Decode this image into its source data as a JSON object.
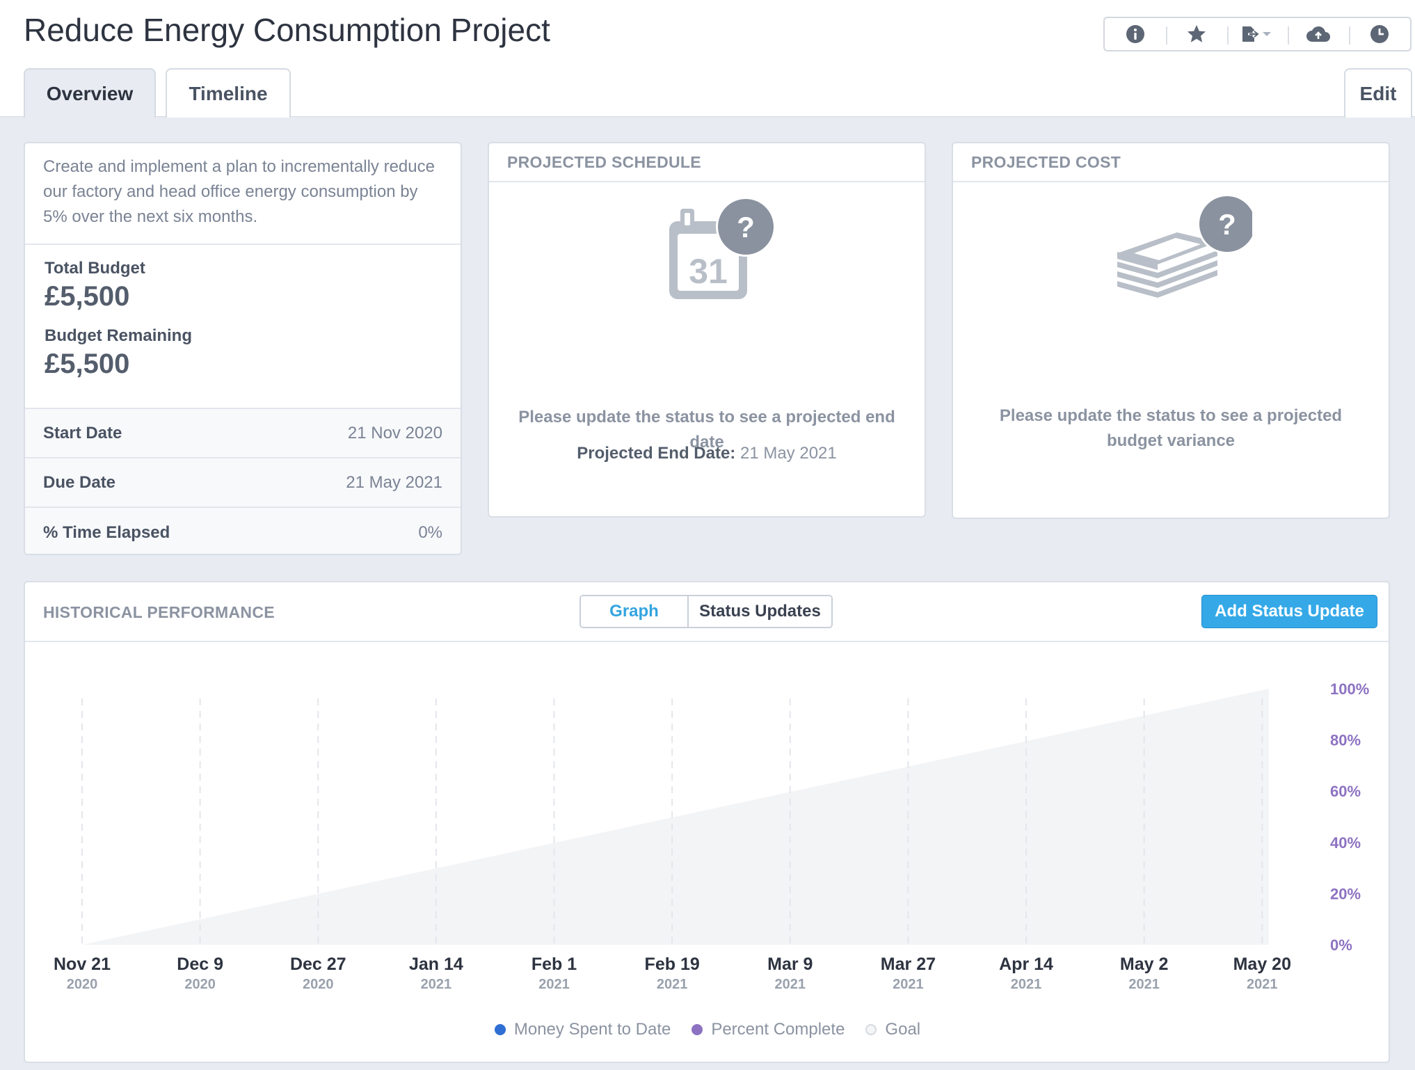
{
  "header": {
    "title": "Reduce Energy Consumption Project",
    "icons": [
      "info-icon",
      "star-icon",
      "export-icon",
      "cloud-upload-icon",
      "clock-icon"
    ]
  },
  "tabs": {
    "overview": "Overview",
    "timeline": "Timeline",
    "edit": "Edit"
  },
  "summary": {
    "description": "Create and implement a plan to incrementally reduce our factory and head office energy consumption by 5% over the next six months.",
    "total_budget_label": "Total Budget",
    "total_budget_value": "£5,500",
    "budget_remaining_label": "Budget Remaining",
    "budget_remaining_value": "£5,500",
    "rows": [
      {
        "label": "Start Date",
        "value": "21 Nov 2020"
      },
      {
        "label": "Due Date",
        "value": "21 May 2021"
      },
      {
        "label": "% Time Elapsed",
        "value": "0%"
      }
    ]
  },
  "schedule": {
    "title": "PROJECTED SCHEDULE",
    "calendar_day": "31",
    "icon_badge": "?",
    "message": "Please update the status to see a projected end date",
    "projected_label": "Projected End Date:",
    "projected_value": "21 May 2021"
  },
  "cost": {
    "title": "PROJECTED COST",
    "icon_badge": "?",
    "message": "Please update the status to see a projected budget variance"
  },
  "performance": {
    "title": "HISTORICAL PERFORMANCE",
    "tab_graph": "Graph",
    "tab_status": "Status Updates",
    "add_button": "Add Status Update",
    "colors": {
      "money": "#2f6fd3",
      "percent": "#8d72c2",
      "goal": "#f3f4f6",
      "accent": "#35a9e8"
    }
  },
  "chart_data": {
    "type": "area",
    "x_ticks": [
      {
        "label": "Nov 21",
        "year": "2020"
      },
      {
        "label": "Dec 9",
        "year": "2020"
      },
      {
        "label": "Dec 27",
        "year": "2020"
      },
      {
        "label": "Jan 14",
        "year": "2021"
      },
      {
        "label": "Feb 1",
        "year": "2021"
      },
      {
        "label": "Feb 19",
        "year": "2021"
      },
      {
        "label": "Mar 9",
        "year": "2021"
      },
      {
        "label": "Mar 27",
        "year": "2021"
      },
      {
        "label": "Apr 14",
        "year": "2021"
      },
      {
        "label": "May 2",
        "year": "2021"
      },
      {
        "label": "May 20",
        "year": "2021"
      }
    ],
    "y_ticks": [
      "0%",
      "20%",
      "40%",
      "60%",
      "80%",
      "100%"
    ],
    "ylim": [
      0,
      100
    ],
    "series": [
      {
        "name": "Money Spent to Date",
        "color": "#2f6fd3",
        "points": []
      },
      {
        "name": "Percent Complete",
        "color": "#8d72c2",
        "points": []
      },
      {
        "name": "Goal",
        "color": "#f3f4f6",
        "points": [
          {
            "x": "2020-11-21",
            "y": 0
          },
          {
            "x": "2021-05-21",
            "y": 100
          }
        ]
      }
    ],
    "grid": "vertical dashed",
    "legend_position": "bottom"
  }
}
